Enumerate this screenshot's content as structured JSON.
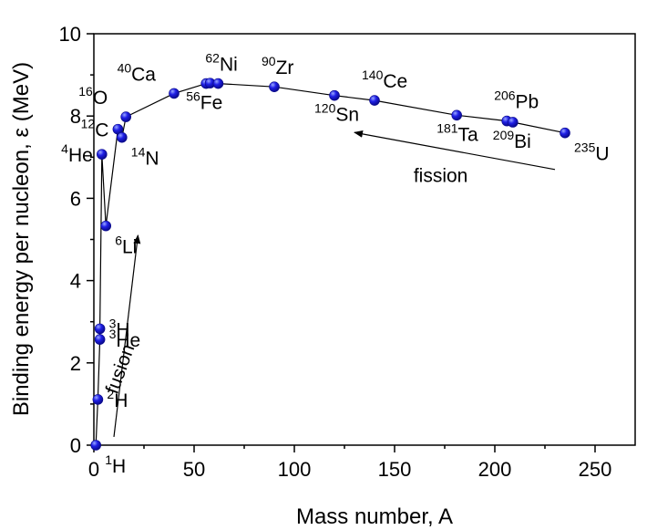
{
  "chart_data": {
    "type": "scatter",
    "xlabel": "Mass number, A",
    "ylabel": "Binding energy per nucleon, ε (MeV)",
    "xlim": [
      0,
      270
    ],
    "ylim": [
      0,
      10
    ],
    "x_ticks": [
      0,
      50,
      100,
      150,
      200,
      250
    ],
    "y_ticks": [
      0,
      2,
      4,
      6,
      8,
      10
    ],
    "grid": false,
    "marker_color": "#1f1fe6",
    "line_color": "#000000",
    "points": [
      {
        "A": 1,
        "E": 0.0,
        "mass": "1",
        "symbol": "H",
        "anchor": "below-right"
      },
      {
        "A": 2,
        "E": 1.11,
        "mass": "2",
        "symbol": "H",
        "anchor": "right"
      },
      {
        "A": 3,
        "E": 2.57,
        "mass": "3",
        "symbol": "He",
        "anchor": "right"
      },
      {
        "A": 3,
        "E": 2.83,
        "mass": "3",
        "symbol": "H",
        "anchor": "right"
      },
      {
        "A": 4,
        "E": 7.07,
        "mass": "4",
        "symbol": "He",
        "anchor": "left"
      },
      {
        "A": 6,
        "E": 5.33,
        "mass": "6",
        "symbol": "Li",
        "anchor": "below-right"
      },
      {
        "A": 12,
        "E": 7.68,
        "mass": "12",
        "symbol": "C",
        "anchor": "left"
      },
      {
        "A": 14,
        "E": 7.48,
        "mass": "14",
        "symbol": "N",
        "anchor": "below-right"
      },
      {
        "A": 16,
        "E": 7.98,
        "mass": "16",
        "symbol": "O",
        "anchor": "above-left"
      },
      {
        "A": 40,
        "E": 8.55,
        "mass": "40",
        "symbol": "Ca",
        "anchor": "above-left"
      },
      {
        "A": 56,
        "E": 8.79,
        "mass": "56",
        "symbol": "Fe",
        "anchor": "below"
      },
      {
        "A": 58,
        "E": 8.8,
        "mass": "",
        "symbol": "",
        "anchor": ""
      },
      {
        "A": 62,
        "E": 8.79,
        "mass": "62",
        "symbol": "Ni",
        "anchor": "above"
      },
      {
        "A": 90,
        "E": 8.71,
        "mass": "90",
        "symbol": "Zr",
        "anchor": "above"
      },
      {
        "A": 120,
        "E": 8.5,
        "mass": "120",
        "symbol": "Sn",
        "anchor": "below"
      },
      {
        "A": 140,
        "E": 8.38,
        "mass": "140",
        "symbol": "Ce",
        "anchor": "above"
      },
      {
        "A": 181,
        "E": 8.02,
        "mass": "181",
        "symbol": "Ta",
        "anchor": "below"
      },
      {
        "A": 206,
        "E": 7.88,
        "mass": "206",
        "symbol": "Pb",
        "anchor": "above"
      },
      {
        "A": 209,
        "E": 7.85,
        "mass": "209",
        "symbol": "Bi",
        "anchor": "below"
      },
      {
        "A": 235,
        "E": 7.59,
        "mass": "235",
        "symbol": "U",
        "anchor": "below-right"
      }
    ],
    "annotations": [
      {
        "text": "fusion",
        "from": [
          10,
          0.2
        ],
        "to": [
          22,
          5.1
        ],
        "text_at": [
          16,
          1.8
        ],
        "rotate": -70
      },
      {
        "text": "fission",
        "from": [
          230,
          6.7
        ],
        "to": [
          130,
          7.6
        ],
        "text_at": [
          173,
          6.4
        ],
        "rotate": 0
      }
    ]
  }
}
